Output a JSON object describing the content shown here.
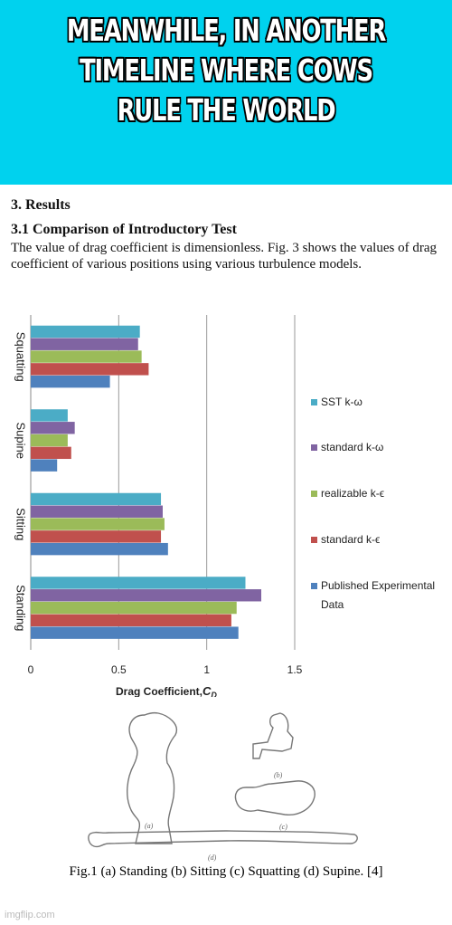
{
  "meme": {
    "caption": "MEANWHILE, IN ANOTHER TIMELINE WHERE COWS RULE THE WORLD",
    "banner_color": "#00d2ee"
  },
  "paper": {
    "section": "3.   Results",
    "subsection": "3.1 Comparison of Introductory Test",
    "paragraph": "The value of drag coefficient is dimensionless. Fig. 3 shows the values of drag coefficient of various positions using various turbulence models.",
    "figure_caption": "Fig.1 (a) Standing (b) Sitting (c) Squatting (d) Supine. [4]",
    "figure_labels": [
      "(a)",
      "(b)",
      "(c)",
      "(d)"
    ]
  },
  "watermark": "imgflip.com",
  "chart_data": {
    "type": "bar",
    "orientation": "horizontal",
    "categories": [
      "Squatting",
      "Supine",
      "Sitting",
      "Standing"
    ],
    "series": [
      {
        "name": "SST k-ω",
        "color": "#4bacc6",
        "values": [
          0.62,
          0.21,
          0.74,
          1.22
        ]
      },
      {
        "name": "standard k-ω",
        "color": "#8064a2",
        "values": [
          0.61,
          0.25,
          0.75,
          1.31
        ]
      },
      {
        "name": "realizable k-ϵ",
        "color": "#9bbb59",
        "values": [
          0.63,
          0.21,
          0.76,
          1.17
        ]
      },
      {
        "name": "standard k-ϵ",
        "color": "#c0504d",
        "values": [
          0.67,
          0.23,
          0.74,
          1.14
        ]
      },
      {
        "name": "Published Experimental Data",
        "color": "#4f81bd",
        "values": [
          0.45,
          0.15,
          0.78,
          1.18
        ]
      }
    ],
    "xlabel": "Drag Coefficient,",
    "xlabel_symbol": "C",
    "xlabel_subscript": "D",
    "xlim": [
      0,
      1.5
    ],
    "xticks": [
      "0",
      "0.5",
      "1",
      "1.5"
    ],
    "grid": true,
    "legend_position": "right"
  }
}
